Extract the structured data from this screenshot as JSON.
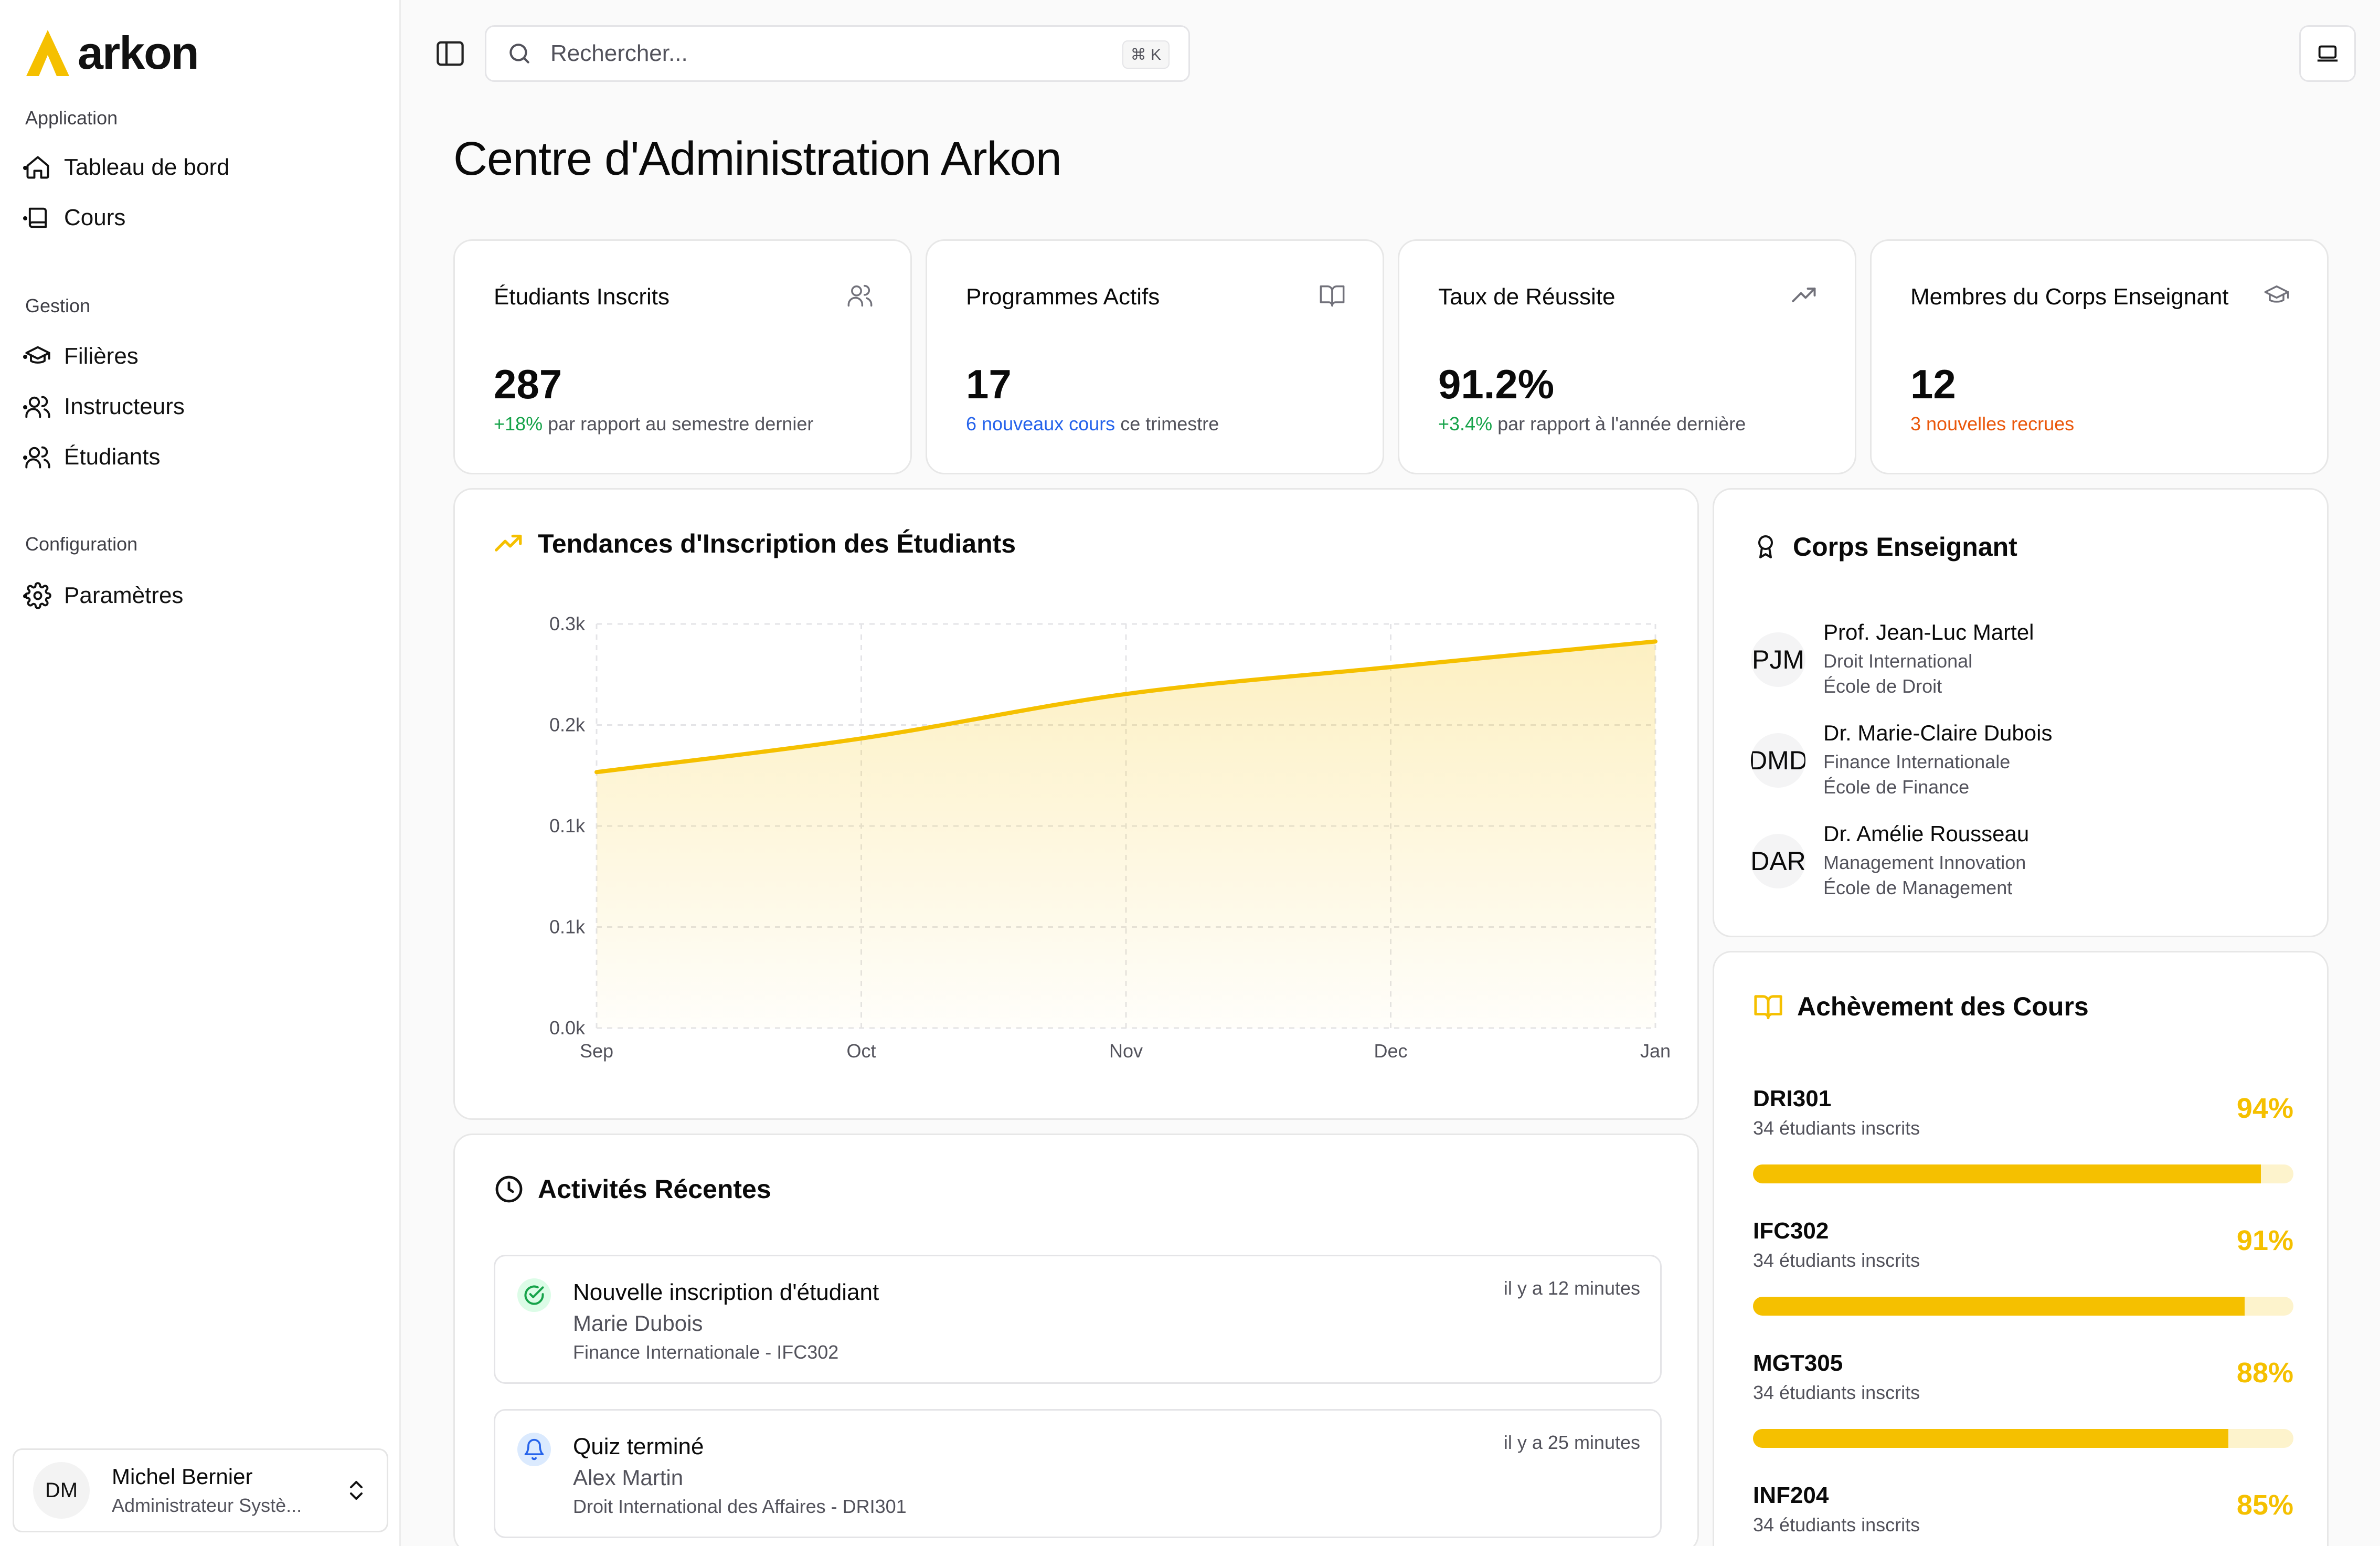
{
  "brand": {
    "name": "arkon",
    "accent": "#f5c000"
  },
  "sidebar": {
    "groups": [
      {
        "label": "Application",
        "items": [
          {
            "label": "Tableau de bord",
            "icon": "home-icon"
          },
          {
            "label": "Cours",
            "icon": "book-icon"
          }
        ]
      },
      {
        "label": "Gestion",
        "items": [
          {
            "label": "Filières",
            "icon": "graduation-cap-icon"
          },
          {
            "label": "Instructeurs",
            "icon": "users-icon"
          },
          {
            "label": "Étudiants",
            "icon": "users-icon"
          }
        ]
      },
      {
        "label": "Configuration",
        "items": [
          {
            "label": "Paramètres",
            "icon": "gear-icon"
          }
        ]
      }
    ],
    "user": {
      "initials": "DM",
      "name": "Michel Bernier",
      "role": "Administrateur Systè..."
    }
  },
  "topbar": {
    "search_placeholder": "Rechercher...",
    "shortcut": "⌘ K"
  },
  "page": {
    "title": "Centre d'Administration Arkon"
  },
  "stats": [
    {
      "title": "Étudiants Inscrits",
      "icon": "users-icon",
      "value": "287",
      "highlight": "+18%",
      "rest": " par rapport au semestre dernier",
      "color": "#16a34a"
    },
    {
      "title": "Programmes Actifs",
      "icon": "book-open-icon",
      "value": "17",
      "highlight": "6 nouveaux cours",
      "rest": " ce trimestre",
      "color": "#2563eb"
    },
    {
      "title": "Taux de Réussite",
      "icon": "trending-up-icon",
      "value": "91.2%",
      "highlight": "+3.4%",
      "rest": " par rapport à l'année dernière",
      "color": "#16a34a"
    },
    {
      "title": "Membres du Corps Enseignant",
      "icon": "graduation-cap-icon",
      "value": "12",
      "highlight": "3 nouvelles recrues",
      "rest": "",
      "color": "#ea580c"
    }
  ],
  "trend_card": {
    "title": "Tendances d'Inscription des Étudiants"
  },
  "chart_data": {
    "type": "area",
    "x": [
      "Sep",
      "Oct",
      "Nov",
      "Dec",
      "Jan"
    ],
    "series": [
      {
        "values": [
          190,
          215,
          248,
          268,
          287
        ]
      }
    ],
    "ylim": [
      0,
      300
    ],
    "ytick_labels": [
      "0.0k",
      "0.1k",
      "0.1k",
      "0.2k",
      "0.3k"
    ],
    "grid": true,
    "title": "",
    "color": "#f5c000"
  },
  "faculty_card": {
    "title": "Corps Enseignant",
    "members": [
      {
        "initials": "PJM",
        "name": "Prof. Jean-Luc Martel",
        "dept": "Droit International",
        "school": "École de Droit"
      },
      {
        "initials": "DMD",
        "name": "Dr. Marie-Claire Dubois",
        "dept": "Finance Internationale",
        "school": "École de Finance"
      },
      {
        "initials": "DAR",
        "name": "Dr. Amélie Rousseau",
        "dept": "Management Innovation",
        "school": "École de Management"
      }
    ]
  },
  "courses_card": {
    "title": "Achèvement des Cours",
    "courses": [
      {
        "code": "DRI301",
        "students": "34 étudiants inscrits",
        "percent_label": "94%",
        "percent": 94
      },
      {
        "code": "IFC302",
        "students": "34 étudiants inscrits",
        "percent_label": "91%",
        "percent": 91
      },
      {
        "code": "MGT305",
        "students": "34 étudiants inscrits",
        "percent_label": "88%",
        "percent": 88
      },
      {
        "code": "INF204",
        "students": "34 étudiants inscrits",
        "percent_label": "85%",
        "percent": 85
      }
    ]
  },
  "activity_card": {
    "title": "Activités Récentes",
    "items": [
      {
        "icon": "check-circle-icon",
        "title": "Nouvelle inscription d'étudiant",
        "person": "Marie Dubois",
        "detail": "Finance Internationale - IFC302",
        "time": "il y a 12 minutes"
      },
      {
        "icon": "bell-icon",
        "title": "Quiz terminé",
        "person": "Alex Martin",
        "detail": "Droit International des Affaires - DRI301",
        "time": "il y a 25 minutes"
      }
    ]
  }
}
